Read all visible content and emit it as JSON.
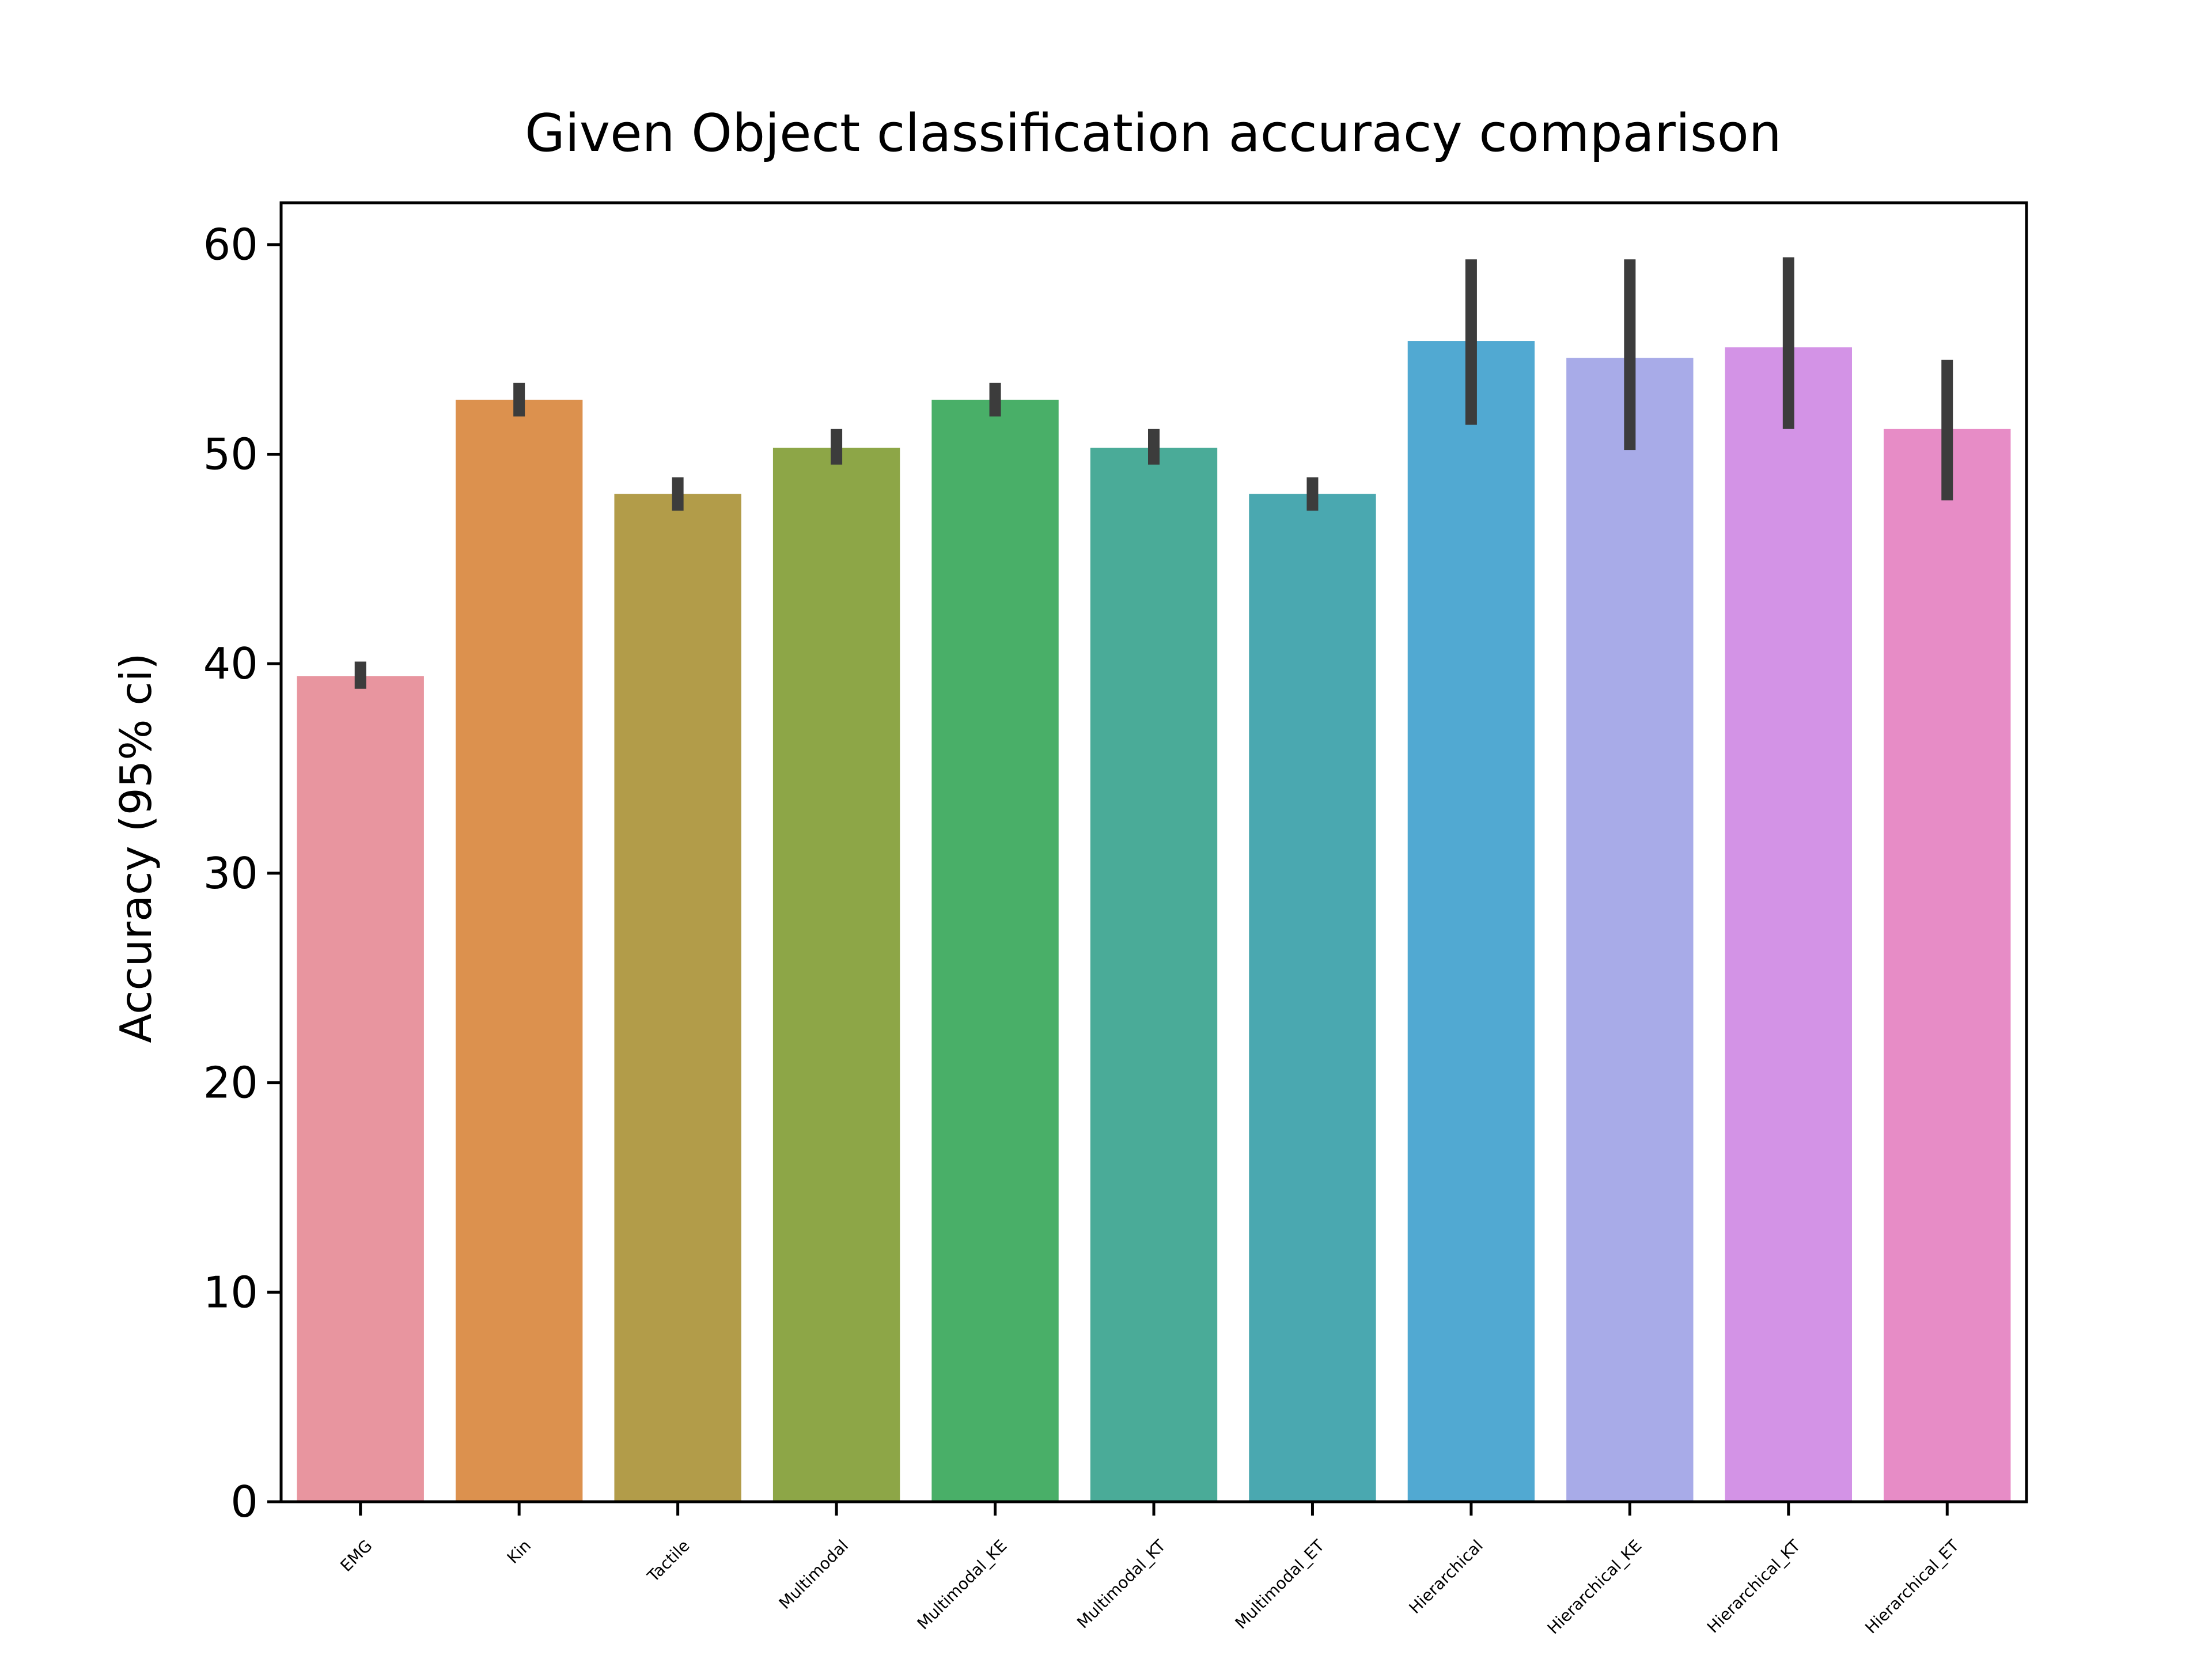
{
  "chart_data": {
    "type": "bar",
    "title": "Given Object classification accuracy comparison",
    "xlabel": "",
    "ylabel": "Accuracy (95% ci)",
    "ylim": [
      0,
      62
    ],
    "yticks": [
      0,
      10,
      20,
      30,
      40,
      50,
      60
    ],
    "grid": false,
    "legend": "none",
    "categories": [
      "EMG",
      "Kin",
      "Tactile",
      "Multimodal",
      "Multimodal_KE",
      "Multimodal_KT",
      "Multimodal_ET",
      "Hierarchical",
      "Hierarchical_KE",
      "Hierarchical_KT",
      "Hierarchical_ET"
    ],
    "values": [
      39.4,
      52.6,
      48.1,
      50.3,
      52.6,
      50.3,
      48.1,
      55.4,
      54.6,
      55.1,
      51.2
    ],
    "ci_low": [
      38.8,
      51.8,
      47.3,
      49.5,
      51.8,
      49.5,
      47.3,
      51.4,
      50.2,
      51.2,
      47.8
    ],
    "ci_high": [
      40.1,
      53.4,
      48.9,
      51.2,
      53.4,
      51.2,
      48.9,
      59.3,
      59.3,
      59.4,
      54.5
    ],
    "colors": [
      "#E8959F",
      "#DC914E",
      "#B29C49",
      "#8DA647",
      "#49AF68",
      "#4AAB98",
      "#4AA8B0",
      "#51A9D2",
      "#A8ABE8",
      "#D393E6",
      "#E78CC6"
    ],
    "errorbar_color": "#3C3C3C"
  }
}
